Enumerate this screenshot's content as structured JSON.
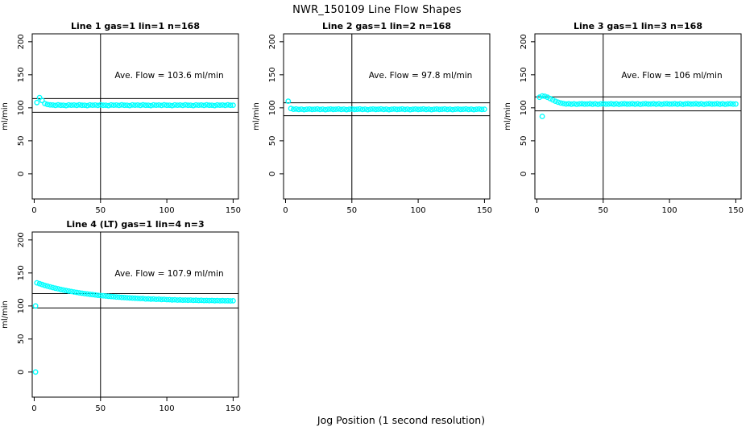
{
  "page": {
    "title": "NWR_150109  Line Flow Shapes",
    "xlabel": "Jog Position (1 second resolution)"
  },
  "colors": {
    "point": "#00FFFF",
    "axis": "#000000",
    "background": "#FFFFFF"
  },
  "chart_data": [
    {
      "type": "scatter",
      "title": "Line 1 gas=1 lin=1 n=168",
      "annotation": "Ave. Flow =  103.6  ml/min",
      "ave_flow_ml_min": 103.6,
      "ylabel": "ml/min",
      "xticks": [
        0,
        50,
        100,
        150
      ],
      "yticks": [
        0,
        50,
        100,
        150,
        200
      ],
      "xlim": [
        -1.5,
        154
      ],
      "ylim": [
        -38,
        212
      ],
      "vline_x": 50,
      "hlines": [
        114.0,
        93.2
      ],
      "grid": false,
      "series": {
        "name": "flow",
        "x0": 2,
        "dx": 2,
        "y": [
          108,
          115.5,
          111,
          106.5,
          105,
          104.4,
          104.2,
          103.6,
          104.5,
          103.8,
          104,
          103.4,
          104.3,
          103.9,
          104.2,
          103.6,
          104.5,
          103.8,
          104,
          103.4,
          104.3,
          103.9,
          104.2,
          103.6,
          104.5,
          103.8,
          104,
          103.4,
          104.3,
          103.9,
          104.2,
          103.6,
          104.5,
          103.8,
          104,
          103.4,
          104.3,
          103.9,
          104.2,
          103.6,
          104.5,
          103.8,
          104,
          103.4,
          104.3,
          103.9,
          104.2,
          103.6,
          104.5,
          103.8,
          104,
          103.4,
          104.3,
          103.9,
          104.2,
          103.6,
          104.5,
          103.8,
          104,
          103.4,
          104.3,
          103.9,
          104.2,
          103.6,
          104.5,
          103.8,
          104,
          103.4,
          104.3,
          103.9,
          104.2,
          103.6,
          104.5,
          103.8,
          104
        ]
      },
      "outliers": []
    },
    {
      "type": "scatter",
      "title": "Line 2 gas=1 lin=2 n=168",
      "annotation": "Ave. Flow =  97.8  ml/min",
      "ave_flow_ml_min": 97.8,
      "ylabel": "ml/min",
      "xticks": [
        0,
        50,
        100,
        150
      ],
      "yticks": [
        0,
        50,
        100,
        150,
        200
      ],
      "xlim": [
        -1.5,
        154
      ],
      "ylim": [
        -38,
        212
      ],
      "vline_x": 50,
      "hlines": [
        107.6,
        88.0
      ],
      "grid": false,
      "series": {
        "name": "flow",
        "x0": 2,
        "dx": 2,
        "y": [
          110,
          99,
          97.8,
          98.2,
          97.5,
          98,
          97.3,
          97.9,
          98.1,
          97.6,
          97.8,
          98.2,
          97.5,
          98,
          97.3,
          97.9,
          98.1,
          97.6,
          97.8,
          98.2,
          97.5,
          98,
          97.3,
          97.9,
          98.1,
          97.6,
          97.8,
          98.2,
          97.5,
          98,
          97.3,
          97.9,
          98.1,
          97.6,
          97.8,
          98.2,
          97.5,
          98,
          97.3,
          97.9,
          98.1,
          97.6,
          97.8,
          98.2,
          97.5,
          98,
          97.3,
          97.9,
          98.1,
          97.6,
          97.8,
          98.2,
          97.5,
          98,
          97.3,
          97.9,
          98.1,
          97.6,
          97.8,
          98.2,
          97.5,
          98,
          97.3,
          97.9,
          98.1,
          97.6,
          97.8,
          98.2,
          97.5,
          98,
          97.3,
          97.9,
          98.1,
          97.6,
          97.8
        ]
      },
      "outliers": []
    },
    {
      "type": "scatter",
      "title": "Line 3 gas=1 lin=3 n=168",
      "annotation": "Ave. Flow =  106  ml/min",
      "ave_flow_ml_min": 106,
      "ylabel": "ml/min",
      "xticks": [
        0,
        50,
        100,
        150
      ],
      "yticks": [
        0,
        50,
        100,
        150,
        200
      ],
      "xlim": [
        -1.5,
        154
      ],
      "ylim": [
        -38,
        212
      ],
      "vline_x": 50,
      "hlines": [
        116.6,
        95.4
      ],
      "grid": false,
      "series": {
        "name": "flow",
        "x0": 2,
        "dx": 2,
        "y": [
          116,
          118,
          117.5,
          116,
          114,
          112,
          110,
          108.5,
          107.2,
          106.5,
          105.8,
          106.2,
          105.5,
          106,
          105.3,
          105.9,
          106.1,
          105.6,
          105.8,
          106.2,
          105.5,
          106,
          105.3,
          105.9,
          106.1,
          105.6,
          105.8,
          106.2,
          105.5,
          106,
          105.3,
          105.9,
          106.1,
          105.6,
          105.8,
          106.2,
          105.5,
          106,
          105.3,
          105.9,
          106.1,
          105.6,
          105.8,
          106.2,
          105.5,
          106,
          105.3,
          105.9,
          106.1,
          105.6,
          105.8,
          106.2,
          105.5,
          106,
          105.3,
          105.9,
          106.1,
          105.6,
          105.8,
          106.2,
          105.5,
          106,
          105.3,
          105.9,
          106.1,
          105.6,
          105.8,
          106.2,
          105.5,
          106,
          105.3,
          105.9,
          106.1,
          105.6,
          105.8
        ]
      },
      "outliers": [
        [
          4,
          87
        ]
      ]
    },
    {
      "type": "scatter",
      "title": "Line 4 (LT) gas=1 lin=4 n=3",
      "annotation": "Ave. Flow =  107.9  ml/min",
      "ave_flow_ml_min": 107.9,
      "ylabel": "ml/min",
      "xticks": [
        0,
        50,
        100,
        150
      ],
      "yticks": [
        0,
        50,
        100,
        150,
        200
      ],
      "xlim": [
        -1.5,
        154
      ],
      "ylim": [
        -38,
        212
      ],
      "vline_x": 50,
      "hlines": [
        118.7,
        97.1
      ],
      "grid": false,
      "series": {
        "name": "flow",
        "x0": 2,
        "dx": 2,
        "y": [
          135.1,
          133.7,
          132.5,
          131.2,
          130.1,
          129,
          127.9,
          126.9,
          126,
          125.1,
          124.2,
          123.4,
          122.6,
          121.9,
          121.2,
          120.5,
          119.9,
          119.3,
          118.7,
          118.2,
          117.7,
          117.2,
          116.7,
          116.2,
          115.8,
          115.4,
          115,
          114.7,
          114.3,
          114,
          113.6,
          113.3,
          113,
          112.8,
          112.5,
          112.2,
          112,
          111.8,
          111.5,
          111.3,
          111.4,
          110.7,
          110.8,
          110.4,
          110.6,
          110.1,
          110.3,
          109.8,
          110,
          109.5,
          109.6,
          109.2,
          109.4,
          109,
          109.2,
          108.8,
          109,
          108.7,
          108.9,
          108.5,
          108.7,
          108.4,
          108.6,
          108.2,
          108.4,
          108.1,
          108.3,
          108,
          108.2,
          107.9,
          108.1,
          107.8,
          108,
          107.7,
          107.9
        ]
      },
      "outliers": [
        [
          1,
          100
        ],
        [
          1,
          0
        ]
      ]
    }
  ]
}
